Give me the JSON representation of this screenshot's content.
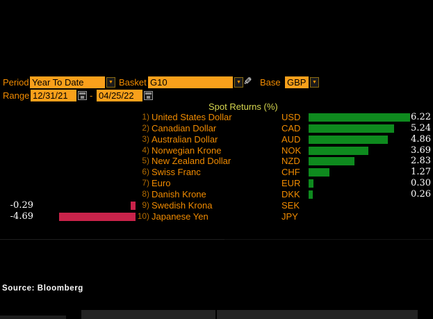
{
  "controls": {
    "period_label": "Period",
    "period_value": "Year To Date",
    "basket_label": "Basket",
    "basket_value": "G10",
    "base_label": "Base",
    "base_value": "GBP",
    "range_label": "Range",
    "range_start": "12/31/21",
    "range_separator": "-",
    "range_end": "04/25/22"
  },
  "icons": {
    "chevron_down": "▼",
    "pencil": "✎"
  },
  "chart_data": {
    "type": "bar",
    "orientation": "horizontal",
    "title": "Spot Returns (%)",
    "categories": [
      "United States Dollar",
      "Canadian Dollar",
      "Australian Dollar",
      "Norwegian Krone",
      "New Zealand Dollar",
      "Swiss Franc",
      "Euro",
      "Danish Krone",
      "Swedish Krona",
      "Japanese Yen"
    ],
    "values": [
      6.22,
      5.24,
      4.86,
      3.69,
      2.83,
      1.27,
      0.3,
      0.26,
      -0.29,
      -4.69
    ],
    "rows": [
      {
        "rank": "1)",
        "name": "United States Dollar",
        "code": "USD",
        "value": 6.22,
        "display": "6.22"
      },
      {
        "rank": "2)",
        "name": "Canadian Dollar",
        "code": "CAD",
        "value": 5.24,
        "display": "5.24"
      },
      {
        "rank": "3)",
        "name": "Australian Dollar",
        "code": "AUD",
        "value": 4.86,
        "display": "4.86"
      },
      {
        "rank": "4)",
        "name": "Norwegian Krone",
        "code": "NOK",
        "value": 3.69,
        "display": "3.69"
      },
      {
        "rank": "5)",
        "name": "New Zealand Dollar",
        "code": "NZD",
        "value": 2.83,
        "display": "2.83"
      },
      {
        "rank": "6)",
        "name": "Swiss Franc",
        "code": "CHF",
        "value": 1.27,
        "display": "1.27"
      },
      {
        "rank": "7)",
        "name": "Euro",
        "code": "EUR",
        "value": 0.3,
        "display": "0.30"
      },
      {
        "rank": "8)",
        "name": "Danish Krone",
        "code": "DKK",
        "value": 0.26,
        "display": "0.26"
      },
      {
        "rank": "9)",
        "name": "Swedish Krona",
        "code": "SEK",
        "value": -0.29,
        "display": "-0.29"
      },
      {
        "rank": "10)",
        "name": "Japanese Yen",
        "code": "JPY",
        "value": -4.69,
        "display": "-4.69"
      }
    ],
    "positive_color": "#0e8a1e",
    "negative_color": "#c9234a",
    "xlim": [
      -5,
      6.5
    ],
    "grid": false,
    "legend": "none"
  },
  "source": "Source: Bloomberg"
}
